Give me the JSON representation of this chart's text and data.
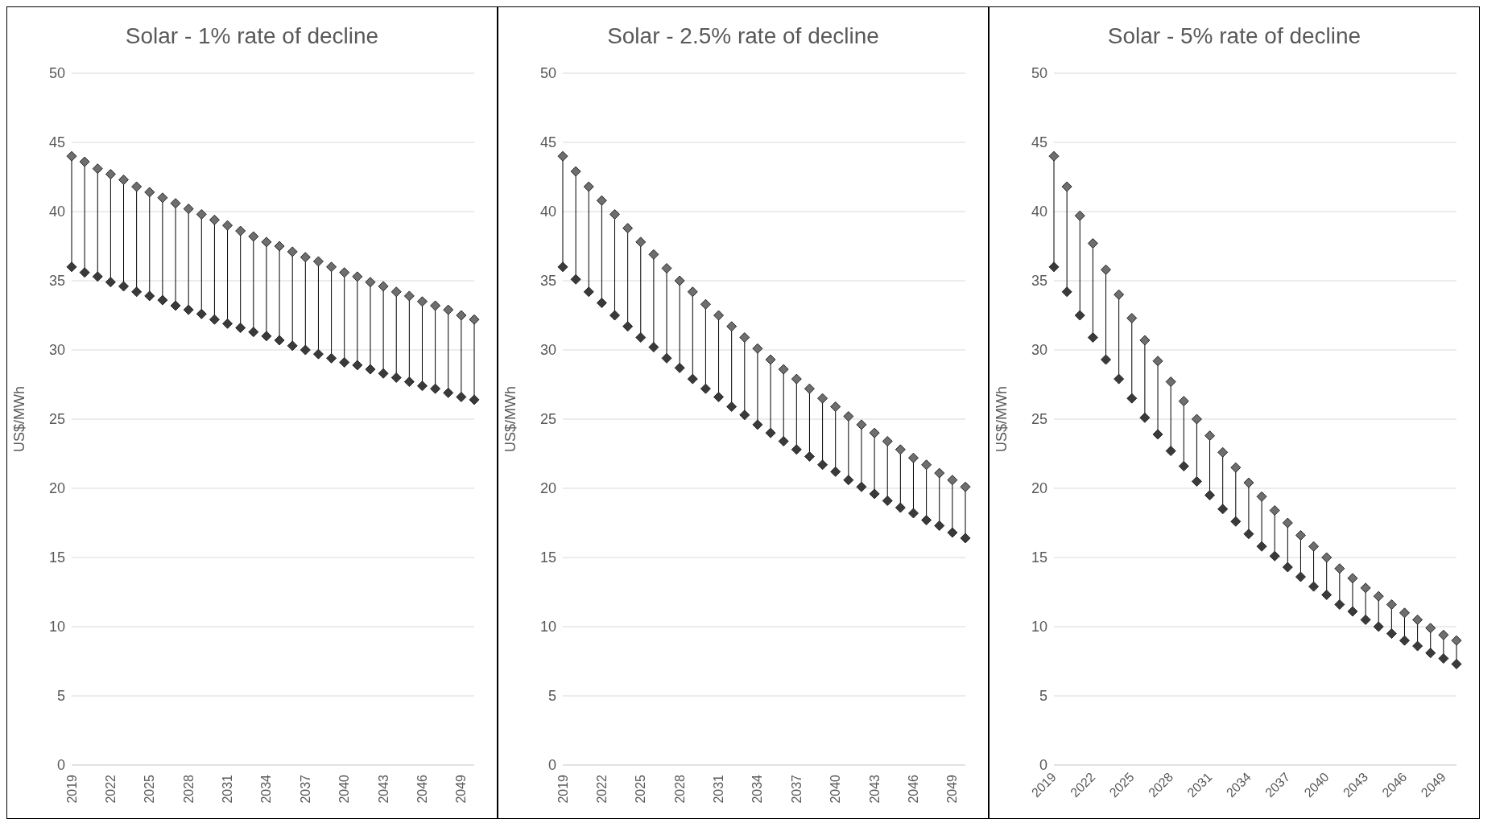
{
  "chart_data": [
    {
      "type": "scatter",
      "title": "Solar - 1% rate of decline",
      "ylabel": "US$/MWh",
      "categories": [
        "2019",
        null,
        null,
        "2022",
        null,
        null,
        "2025",
        null,
        null,
        "2028",
        null,
        null,
        "2031",
        null,
        null,
        "2034",
        null,
        null,
        "2037",
        null,
        null,
        "2040",
        null,
        null,
        "2043",
        null,
        null,
        "2046",
        null,
        null,
        "2049",
        null
      ],
      "ylim": [
        0,
        50
      ],
      "yticks": [
        0,
        5,
        10,
        15,
        20,
        25,
        30,
        35,
        40,
        45,
        50
      ],
      "grid": "y",
      "marker": "diamond",
      "legend": false,
      "series": [
        {
          "color": "#6e6e6e",
          "values": [
            44,
            43.6,
            43.1,
            42.7,
            42.3,
            41.8,
            41.4,
            41.0,
            40.6,
            40.2,
            39.8,
            39.4,
            39.0,
            38.6,
            38.2,
            37.8,
            37.5,
            37.1,
            36.7,
            36.4,
            36.0,
            35.6,
            35.3,
            34.9,
            34.6,
            34.2,
            33.9,
            33.5,
            33.2,
            32.9,
            32.5,
            32.2
          ]
        },
        {
          "color": "#3a3a3a",
          "values": [
            36,
            35.6,
            35.3,
            34.9,
            34.6,
            34.2,
            33.9,
            33.6,
            33.2,
            32.9,
            32.6,
            32.2,
            31.9,
            31.6,
            31.3,
            31.0,
            30.7,
            30.3,
            30.0,
            29.7,
            29.4,
            29.1,
            28.9,
            28.6,
            28.3,
            28.0,
            27.7,
            27.4,
            27.2,
            26.9,
            26.6,
            26.4
          ]
        }
      ]
    },
    {
      "type": "scatter",
      "title": "Solar - 2.5% rate of decline",
      "ylabel": "US$/MWh",
      "categories": [
        "2019",
        null,
        null,
        "2022",
        null,
        null,
        "2025",
        null,
        null,
        "2028",
        null,
        null,
        "2031",
        null,
        null,
        "2034",
        null,
        null,
        "2037",
        null,
        null,
        "2040",
        null,
        null,
        "2043",
        null,
        null,
        "2046",
        null,
        null,
        "2049",
        null
      ],
      "ylim": [
        0,
        50
      ],
      "yticks": [
        0,
        5,
        10,
        15,
        20,
        25,
        30,
        35,
        40,
        45,
        50
      ],
      "grid": "y",
      "marker": "diamond",
      "legend": false,
      "series": [
        {
          "color": "#6e6e6e",
          "values": [
            44,
            42.9,
            41.8,
            40.8,
            39.8,
            38.8,
            37.8,
            36.9,
            35.9,
            35.0,
            34.2,
            33.3,
            32.5,
            31.7,
            30.9,
            30.1,
            29.3,
            28.6,
            27.9,
            27.2,
            26.5,
            25.9,
            25.2,
            24.6,
            24.0,
            23.4,
            22.8,
            22.2,
            21.7,
            21.1,
            20.6,
            20.1
          ]
        },
        {
          "color": "#3a3a3a",
          "values": [
            36,
            35.1,
            34.2,
            33.4,
            32.5,
            31.7,
            30.9,
            30.2,
            29.4,
            28.7,
            27.9,
            27.2,
            26.6,
            25.9,
            25.3,
            24.6,
            24.0,
            23.4,
            22.8,
            22.3,
            21.7,
            21.2,
            20.6,
            20.1,
            19.6,
            19.1,
            18.6,
            18.2,
            17.7,
            17.3,
            16.8,
            16.4
          ]
        }
      ]
    },
    {
      "type": "scatter",
      "title": "Solar - 5% rate of decline",
      "ylabel": "US$/MWh",
      "categories": [
        "2019",
        null,
        null,
        "2022",
        null,
        null,
        "2025",
        null,
        null,
        "2028",
        null,
        null,
        "2031",
        null,
        null,
        "2034",
        null,
        null,
        "2037",
        null,
        null,
        "2040",
        null,
        null,
        "2043",
        null,
        null,
        "2046",
        null,
        null,
        "2049",
        null
      ],
      "ylim": [
        0,
        50
      ],
      "yticks": [
        0,
        5,
        10,
        15,
        20,
        25,
        30,
        35,
        40,
        45,
        50
      ],
      "grid": "y",
      "marker": "diamond",
      "legend": false,
      "series": [
        {
          "color": "#6e6e6e",
          "values": [
            44,
            41.8,
            39.7,
            37.7,
            35.8,
            34.0,
            32.3,
            30.7,
            29.2,
            27.7,
            26.3,
            25.0,
            23.8,
            22.6,
            21.5,
            20.4,
            19.4,
            18.4,
            17.5,
            16.6,
            15.8,
            15.0,
            14.2,
            13.5,
            12.8,
            12.2,
            11.6,
            11.0,
            10.5,
            9.9,
            9.4,
            9.0
          ]
        },
        {
          "color": "#3a3a3a",
          "values": [
            36,
            34.2,
            32.5,
            30.9,
            29.3,
            27.9,
            26.5,
            25.1,
            23.9,
            22.7,
            21.6,
            20.5,
            19.5,
            18.5,
            17.6,
            16.7,
            15.8,
            15.1,
            14.3,
            13.6,
            12.9,
            12.3,
            11.6,
            11.1,
            10.5,
            10.0,
            9.5,
            9.0,
            8.6,
            8.1,
            7.7,
            7.3
          ]
        }
      ]
    }
  ]
}
